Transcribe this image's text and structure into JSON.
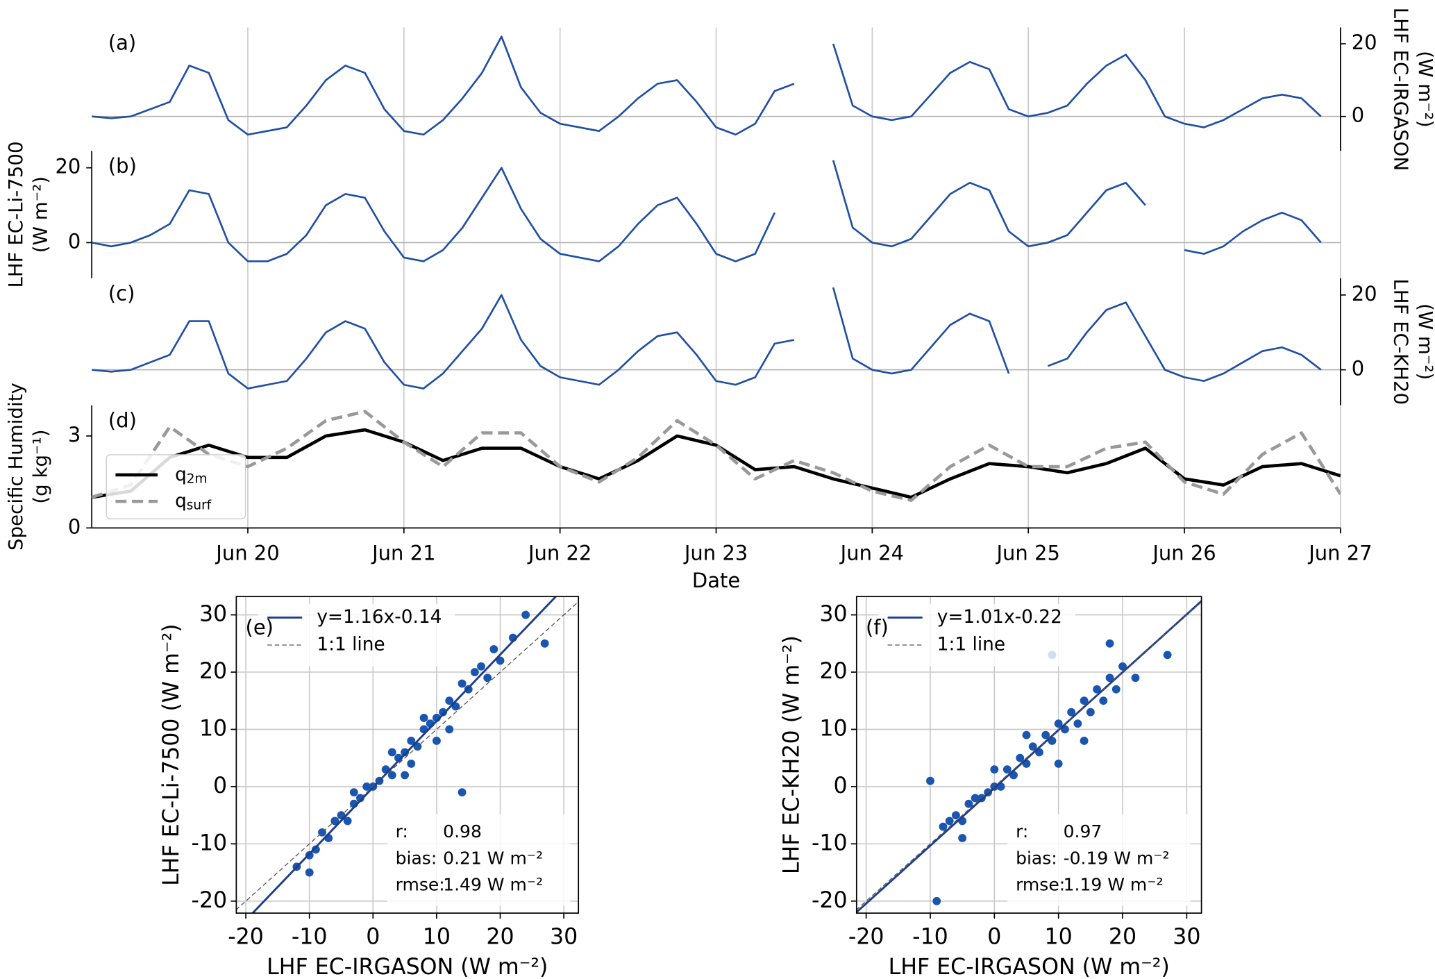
{
  "chart_data": [
    {
      "type": "line",
      "panel_label": "(a)",
      "y_label": [
        "LHF EC-IRGASON",
        "(W m⁻²)"
      ],
      "y_axis_side": "right",
      "xlim": [
        19,
        27
      ],
      "ylim": [
        -9.5,
        24.5
      ],
      "yticks": [
        0,
        20
      ],
      "hline": 0,
      "x": [
        19,
        19.125,
        19.25,
        19.375,
        19.5,
        19.625,
        19.75,
        19.875,
        20,
        20.125,
        20.25,
        20.375,
        20.5,
        20.625,
        20.75,
        20.875,
        21,
        21.125,
        21.25,
        21.375,
        21.5,
        21.625,
        21.75,
        21.875,
        22,
        22.125,
        22.25,
        22.375,
        22.5,
        22.625,
        22.75,
        22.875,
        23,
        23.125,
        23.25,
        23.375,
        23.5,
        23.625,
        23.75,
        23.875,
        24,
        24.125,
        24.25,
        24.375,
        24.5,
        24.625,
        24.75,
        24.875,
        25,
        25.125,
        25.25,
        25.375,
        25.5,
        25.625,
        25.75,
        25.875,
        26,
        26.125,
        26.25,
        26.375,
        26.5,
        26.625,
        26.75,
        26.875
      ],
      "series": [
        {
          "color": "#1f4ea3",
          "values": [
            0,
            -0.5,
            0,
            2,
            4,
            14,
            12,
            -1,
            -5,
            -4,
            -3,
            3,
            10,
            14,
            12,
            2,
            -4,
            -5,
            -1,
            5,
            12,
            22,
            8,
            1,
            -2,
            -3,
            -4,
            0,
            5,
            9,
            10,
            4,
            -3,
            -5,
            -2,
            7,
            9,
            null,
            20,
            3,
            0,
            -1,
            0,
            6,
            12,
            15,
            13,
            2,
            0,
            1,
            3,
            9,
            14,
            17,
            10,
            0,
            -2,
            -3,
            -1,
            2,
            5,
            6,
            5,
            0
          ]
        }
      ]
    },
    {
      "type": "line",
      "panel_label": "(b)",
      "y_label": [
        "LHF EC-Li-7500",
        "(W m⁻²)"
      ],
      "y_axis_side": "left",
      "xlim": [
        19,
        27
      ],
      "ylim": [
        -9.5,
        24.5
      ],
      "yticks": [
        0,
        20
      ],
      "hline": 0,
      "x": [
        19,
        19.125,
        19.25,
        19.375,
        19.5,
        19.625,
        19.75,
        19.875,
        20,
        20.125,
        20.25,
        20.375,
        20.5,
        20.625,
        20.75,
        20.875,
        21,
        21.125,
        21.25,
        21.375,
        21.5,
        21.625,
        21.75,
        21.875,
        22,
        22.125,
        22.25,
        22.375,
        22.5,
        22.625,
        22.75,
        22.875,
        23,
        23.125,
        23.25,
        23.375,
        23.5,
        23.625,
        23.75,
        23.875,
        24,
        24.125,
        24.25,
        24.375,
        24.5,
        24.625,
        24.75,
        24.875,
        25,
        25.125,
        25.25,
        25.375,
        25.5,
        25.625,
        25.75,
        25.875,
        26,
        26.125,
        26.25,
        26.375,
        26.5,
        26.625,
        26.75,
        26.875
      ],
      "series": [
        {
          "color": "#1f4ea3",
          "values": [
            0,
            -1,
            0,
            2,
            5,
            14,
            13,
            0,
            -5,
            -5,
            -3,
            2,
            10,
            13,
            12,
            3,
            -4,
            -5,
            -2,
            4,
            12,
            20,
            9,
            1,
            -3,
            -4,
            -5,
            -1,
            5,
            10,
            12,
            5,
            -3,
            -5,
            -3,
            8,
            null,
            null,
            22,
            4,
            0,
            -1,
            1,
            7,
            13,
            16,
            14,
            3,
            -1,
            0,
            2,
            8,
            14,
            16,
            10,
            null,
            -2,
            -3,
            -1,
            3,
            6,
            8,
            6,
            0
          ]
        }
      ]
    },
    {
      "type": "line",
      "panel_label": "(c)",
      "y_label": [
        "LHF EC-KH20",
        "(W m⁻²)"
      ],
      "y_axis_side": "right",
      "xlim": [
        19,
        27
      ],
      "ylim": [
        -9.5,
        24.5
      ],
      "yticks": [
        0,
        20
      ],
      "hline": 0,
      "x": [
        19,
        19.125,
        19.25,
        19.375,
        19.5,
        19.625,
        19.75,
        19.875,
        20,
        20.125,
        20.25,
        20.375,
        20.5,
        20.625,
        20.75,
        20.875,
        21,
        21.125,
        21.25,
        21.375,
        21.5,
        21.625,
        21.75,
        21.875,
        22,
        22.125,
        22.25,
        22.375,
        22.5,
        22.625,
        22.75,
        22.875,
        23,
        23.125,
        23.25,
        23.375,
        23.5,
        23.625,
        23.75,
        23.875,
        24,
        24.125,
        24.25,
        24.375,
        24.5,
        24.625,
        24.75,
        24.875,
        25,
        25.125,
        25.25,
        25.375,
        25.5,
        25.625,
        25.75,
        25.875,
        26,
        26.125,
        26.25,
        26.375,
        26.5,
        26.625,
        26.75,
        26.875
      ],
      "series": [
        {
          "color": "#1f4ea3",
          "values": [
            0,
            -0.5,
            0,
            2,
            4,
            13,
            13,
            -1,
            -5,
            -4,
            -3,
            3,
            10,
            13,
            11,
            2,
            -4,
            -5,
            -1,
            5,
            11,
            20,
            8,
            1,
            -2,
            -3,
            -4,
            0,
            5,
            9,
            10,
            4,
            -3,
            -4,
            -2,
            7,
            8,
            null,
            22,
            3,
            0,
            -1,
            0,
            6,
            12,
            15,
            13,
            -1,
            null,
            1,
            3,
            10,
            16,
            18,
            9,
            0,
            -2,
            -3,
            -1,
            2,
            5,
            6,
            4,
            0
          ]
        }
      ]
    },
    {
      "type": "line",
      "panel_label": "(d)",
      "y_label": [
        "Specific Humidity",
        "(g kg⁻¹)"
      ],
      "y_axis_side": "left",
      "x_label": "Date",
      "xlim": [
        19,
        27
      ],
      "ylim": [
        0,
        4
      ],
      "yticks": [
        0,
        3
      ],
      "xticks": [
        {
          "value": 20,
          "label": "Jun 20"
        },
        {
          "value": 21,
          "label": "Jun 21"
        },
        {
          "value": 22,
          "label": "Jun 22"
        },
        {
          "value": 23,
          "label": "Jun 23"
        },
        {
          "value": 24,
          "label": "Jun 24"
        },
        {
          "value": 25,
          "label": "Jun 25"
        },
        {
          "value": 26,
          "label": "Jun 26"
        },
        {
          "value": 27,
          "label": "Jun 27"
        }
      ],
      "legend": "lower left",
      "x": [
        19,
        19.25,
        19.5,
        19.75,
        20,
        20.25,
        20.5,
        20.75,
        21,
        21.25,
        21.5,
        21.75,
        22,
        22.25,
        22.5,
        22.75,
        23,
        23.25,
        23.5,
        23.75,
        24,
        24.25,
        24.5,
        24.75,
        25,
        25.25,
        25.5,
        25.75,
        26,
        26.25,
        26.5,
        26.75,
        27
      ],
      "series": [
        {
          "name": "q",
          "name_sub": "2m",
          "color": "#000000",
          "dash": false,
          "values": [
            1.0,
            1.2,
            2.3,
            2.7,
            2.3,
            2.3,
            3.0,
            3.2,
            2.8,
            2.2,
            2.6,
            2.6,
            2.0,
            1.6,
            2.2,
            3.0,
            2.7,
            1.9,
            2.0,
            1.6,
            1.3,
            1.0,
            1.6,
            2.1,
            2.0,
            1.8,
            2.1,
            2.6,
            1.6,
            1.4,
            2.0,
            2.1,
            1.7
          ]
        },
        {
          "name": "q",
          "name_sub": "surf",
          "color": "#999999",
          "dash": true,
          "values": [
            1.0,
            1.4,
            3.3,
            2.4,
            2.0,
            2.6,
            3.5,
            3.8,
            2.8,
            2.0,
            3.1,
            3.1,
            2.0,
            1.5,
            2.3,
            3.5,
            2.7,
            1.6,
            2.2,
            1.8,
            1.2,
            0.9,
            2.0,
            2.7,
            2.0,
            2.0,
            2.6,
            2.8,
            1.5,
            1.1,
            2.4,
            3.1,
            1.1
          ]
        }
      ]
    },
    {
      "type": "scatter",
      "panel_label": "(e)",
      "x_label": "LHF EC-IRGASON (W m⁻²)",
      "y_label": "LHF EC-Li-7500 (W m⁻²)",
      "xlim": [
        -21.5,
        32.3
      ],
      "ylim": [
        -22.1,
        33.2
      ],
      "xticks": [
        -20,
        -10,
        0,
        10,
        20,
        30
      ],
      "yticks": [
        -20,
        -10,
        0,
        10,
        20,
        30
      ],
      "grid": true,
      "series": [
        {
          "kind": "points",
          "color": "#1a56b0",
          "x": [
            -12,
            -10,
            -9,
            -8,
            -7,
            -6,
            -5,
            -4,
            -3,
            -2,
            -1,
            0,
            1,
            2,
            3,
            4,
            5,
            6,
            7,
            8,
            9,
            10,
            11,
            12,
            13,
            14,
            15,
            16,
            17,
            18,
            19,
            20,
            22,
            24,
            27,
            14,
            10,
            6,
            -10,
            5,
            12,
            8,
            3,
            -3
          ],
          "values": [
            -14,
            -12,
            -11,
            -8,
            -9,
            -6,
            -5,
            -6,
            -3,
            -2,
            0,
            0,
            1,
            3,
            2,
            5,
            6,
            8,
            7,
            10,
            11,
            12,
            13,
            15,
            14,
            18,
            17,
            20,
            21,
            19,
            24,
            22,
            26,
            30,
            25,
            -1,
            8,
            4,
            -15,
            2,
            10,
            12,
            6,
            -1
          ]
        },
        {
          "kind": "line",
          "name": "y=1.16x-0.14",
          "color": "#1c3c8c",
          "dash": false,
          "x": [
            -25,
            35
          ],
          "values": [
            -29.14,
            40.46
          ]
        },
        {
          "kind": "line",
          "name": "1:1 line",
          "color": "#555555",
          "dash": true,
          "x": [
            -25,
            35
          ],
          "values": [
            -25,
            35
          ]
        }
      ],
      "stats": [
        [
          "r:",
          "0.98"
        ],
        [
          "bias:",
          "0.21 W m⁻²"
        ],
        [
          "rmse:",
          "1.49 W m⁻²"
        ]
      ]
    },
    {
      "type": "scatter",
      "panel_label": "(f)",
      "x_label": "LHF EC-IRGASON (W m⁻²)",
      "y_label": "LHF EC-KH20  (W m⁻²)",
      "xlim": [
        -21.5,
        32.3
      ],
      "ylim": [
        -22.1,
        33.2
      ],
      "xticks": [
        -20,
        -10,
        0,
        10,
        20,
        30
      ],
      "yticks": [
        -20,
        -10,
        0,
        10,
        20,
        30
      ],
      "grid": true,
      "series": [
        {
          "kind": "points",
          "color": "#1a56b0",
          "x": [
            -8,
            -7,
            -6,
            -5,
            -4,
            -3,
            -2,
            -1,
            0,
            1,
            2,
            3,
            4,
            5,
            6,
            7,
            8,
            9,
            10,
            11,
            12,
            13,
            14,
            15,
            16,
            17,
            18,
            19,
            20,
            22,
            27,
            -10,
            -9,
            9,
            10,
            18,
            5,
            0,
            -5,
            14
          ],
          "values": [
            -7,
            -6,
            -5,
            -6,
            -3,
            -2,
            -2,
            -1,
            0,
            0,
            3,
            2,
            5,
            4,
            7,
            6,
            9,
            8,
            11,
            10,
            13,
            11,
            15,
            13,
            17,
            15,
            19,
            17,
            21,
            19,
            23,
            1,
            -20,
            23,
            4,
            25,
            9,
            3,
            -9,
            8
          ]
        },
        {
          "kind": "line",
          "name": "y=1.01x-0.22",
          "color": "#1c3c8c",
          "dash": false,
          "x": [
            -25,
            35
          ],
          "values": [
            -25.47,
            35.13
          ]
        },
        {
          "kind": "line",
          "name": "1:1 line",
          "color": "#555555",
          "dash": true,
          "x": [
            -25,
            35
          ],
          "values": [
            -25,
            35
          ]
        }
      ],
      "stats": [
        [
          "r:",
          "0.97"
        ],
        [
          "bias:",
          "-0.19 W m⁻²"
        ],
        [
          "rmse:",
          "1.19 W m⁻²"
        ]
      ]
    }
  ]
}
